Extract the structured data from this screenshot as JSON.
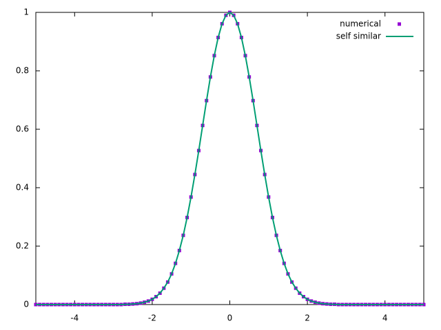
{
  "chart_data": {
    "type": "line",
    "x": [
      -5.0,
      -4.9,
      -4.8,
      -4.7,
      -4.6,
      -4.5,
      -4.4,
      -4.3,
      -4.2,
      -4.1,
      -4.0,
      -3.9,
      -3.8,
      -3.7,
      -3.6,
      -3.5,
      -3.4,
      -3.3,
      -3.2,
      -3.1,
      -3.0,
      -2.9,
      -2.8,
      -2.7,
      -2.6,
      -2.5,
      -2.4,
      -2.3,
      -2.2,
      -2.1,
      -2.0,
      -1.9,
      -1.8,
      -1.7,
      -1.6,
      -1.5,
      -1.4,
      -1.3,
      -1.2,
      -1.1,
      -1.0,
      -0.9,
      -0.8,
      -0.7,
      -0.6,
      -0.5,
      -0.4,
      -0.3,
      -0.2,
      -0.1,
      0,
      0.1,
      0.2,
      0.3,
      0.4,
      0.5,
      0.6,
      0.7,
      0.8,
      0.9,
      1.0,
      1.1,
      1.2,
      1.3,
      1.4,
      1.5,
      1.6,
      1.7,
      1.8,
      1.9,
      2.0,
      2.1,
      2.2,
      2.3,
      2.4,
      2.5,
      2.6,
      2.7,
      2.8,
      2.9,
      3.0,
      3.1,
      3.2,
      3.3,
      3.4,
      3.5,
      3.6,
      3.7,
      3.8,
      3.9,
      4.0,
      4.1,
      4.2,
      4.3,
      4.4,
      4.5,
      4.6,
      4.7,
      4.8,
      4.9,
      5.0
    ],
    "series": [
      {
        "name": "numerical",
        "color": "#9400d3",
        "style": "points",
        "values": [
          0,
          0,
          0,
          0,
          0,
          0,
          0,
          0,
          0,
          0,
          0,
          0,
          0,
          0,
          0,
          0,
          0,
          0,
          0,
          0,
          0,
          0,
          0,
          0.001,
          0.001,
          0.002,
          0.003,
          0.005,
          0.008,
          0.012,
          0.018,
          0.027,
          0.039,
          0.056,
          0.077,
          0.105,
          0.141,
          0.185,
          0.237,
          0.298,
          0.368,
          0.445,
          0.527,
          0.613,
          0.698,
          0.779,
          0.852,
          0.914,
          0.961,
          0.99,
          1,
          0.99,
          0.961,
          0.914,
          0.852,
          0.779,
          0.698,
          0.613,
          0.527,
          0.445,
          0.368,
          0.298,
          0.237,
          0.185,
          0.141,
          0.105,
          0.077,
          0.056,
          0.039,
          0.027,
          0.018,
          0.012,
          0.008,
          0.005,
          0.003,
          0.002,
          0.001,
          0.001,
          0,
          0,
          0,
          0,
          0,
          0,
          0,
          0,
          0,
          0,
          0,
          0,
          0,
          0,
          0,
          0,
          0,
          0,
          0,
          0,
          0,
          0,
          0
        ]
      },
      {
        "name": "self similar",
        "color": "#009e73",
        "style": "line",
        "values": [
          0,
          0,
          0,
          0,
          0,
          0,
          0,
          0,
          0,
          0,
          0,
          0,
          0,
          0,
          0,
          0,
          0,
          0,
          0,
          0,
          0,
          0,
          0,
          0.001,
          0.001,
          0.002,
          0.003,
          0.005,
          0.008,
          0.012,
          0.018,
          0.027,
          0.039,
          0.056,
          0.077,
          0.105,
          0.141,
          0.185,
          0.237,
          0.298,
          0.368,
          0.445,
          0.527,
          0.613,
          0.698,
          0.779,
          0.852,
          0.914,
          0.961,
          0.99,
          1,
          0.99,
          0.961,
          0.914,
          0.852,
          0.779,
          0.698,
          0.613,
          0.527,
          0.445,
          0.368,
          0.298,
          0.237,
          0.185,
          0.141,
          0.105,
          0.077,
          0.056,
          0.039,
          0.027,
          0.018,
          0.012,
          0.008,
          0.005,
          0.003,
          0.002,
          0.001,
          0.001,
          0,
          0,
          0,
          0,
          0,
          0,
          0,
          0,
          0,
          0,
          0,
          0,
          0,
          0,
          0,
          0,
          0,
          0,
          0,
          0,
          0,
          0,
          0
        ]
      }
    ],
    "xlim": [
      -5,
      5
    ],
    "ylim": [
      0,
      1
    ],
    "xticks": [
      -4,
      -2,
      0,
      2,
      4
    ],
    "yticks": [
      0,
      0.2,
      0.4,
      0.6,
      0.8,
      1
    ],
    "legend": "top-right"
  }
}
